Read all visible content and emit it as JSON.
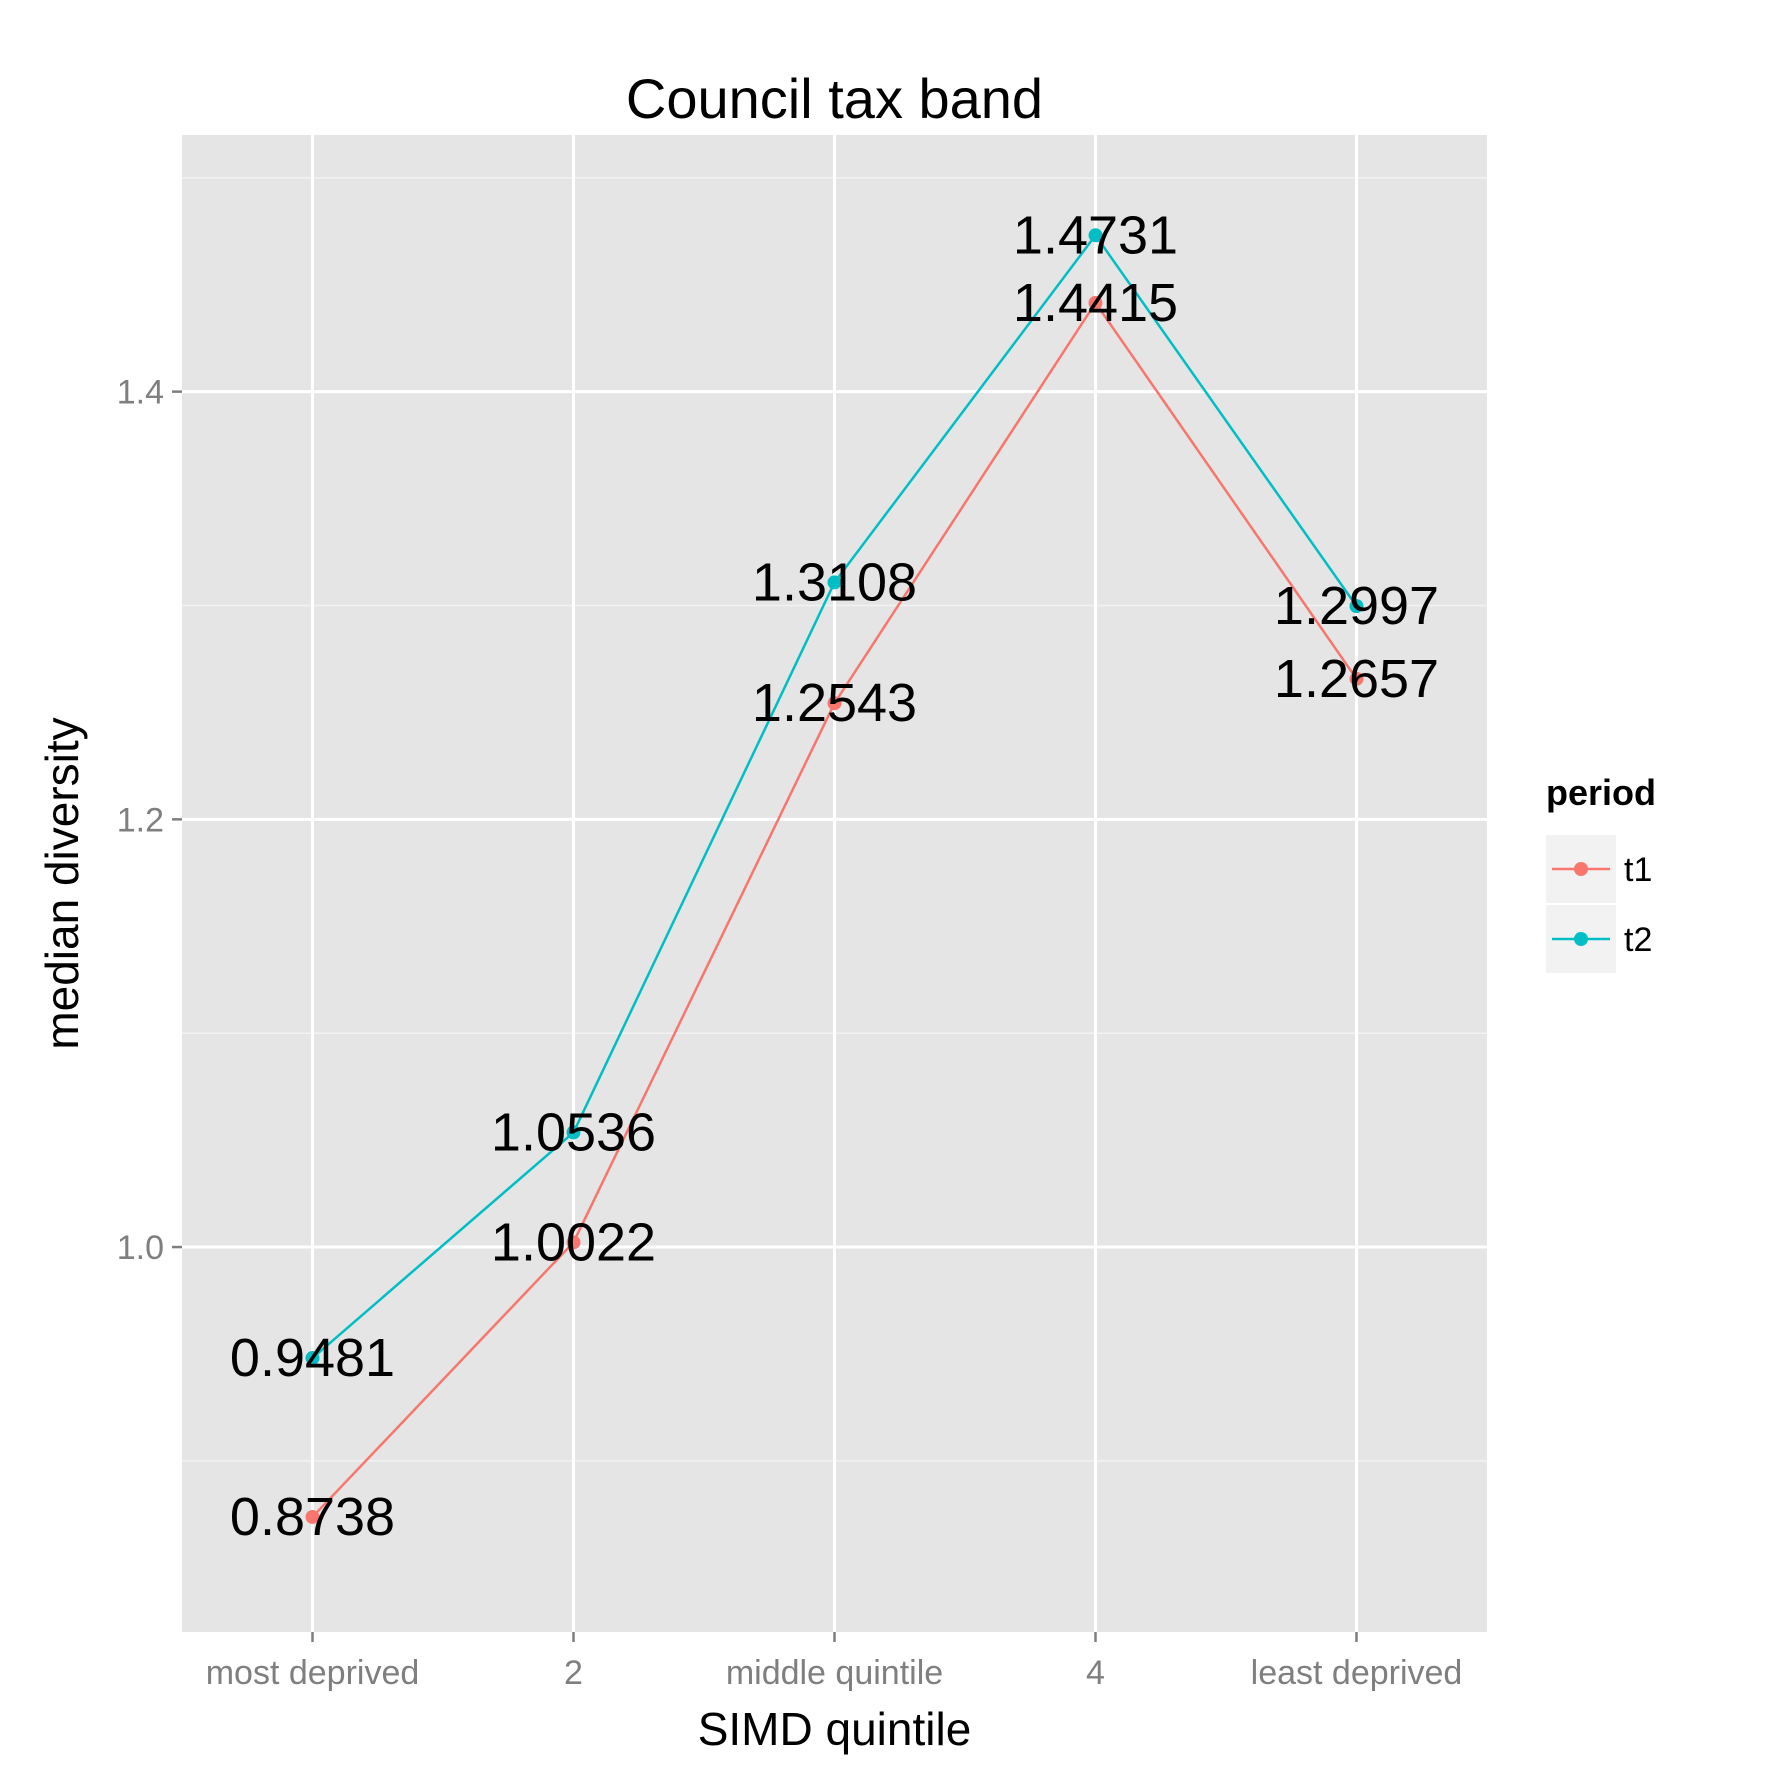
{
  "chart_data": {
    "type": "line",
    "title": "Council tax band",
    "xlabel": "SIMD quintile",
    "ylabel": "median diversity",
    "categories": [
      "most deprived",
      "2",
      "middle quintile",
      "4",
      "least deprived"
    ],
    "ylim": [
      0.82,
      1.52
    ],
    "yticks": [
      1.0,
      1.2,
      1.4
    ],
    "ytick_labels": [
      "1.0",
      "1.2",
      "1.4"
    ],
    "grid": true,
    "legend": {
      "title": "period",
      "position": "right"
    },
    "series": [
      {
        "name": "t1",
        "color": "#F8766D",
        "values": [
          0.8738,
          1.0022,
          1.2543,
          1.4415,
          1.2657
        ],
        "labels": [
          "0.8738",
          "1.0022",
          "1.2543",
          "1.4415",
          "1.2657"
        ]
      },
      {
        "name": "t2",
        "color": "#00BFC4",
        "values": [
          0.9481,
          1.0536,
          1.3108,
          1.4731,
          1.2997
        ],
        "labels": [
          "0.9481",
          "1.0536",
          "1.3108",
          "1.4731",
          "1.2997"
        ]
      }
    ],
    "colors": {
      "panel": "#E5E5E5",
      "grid": "#FFFFFF",
      "tick_text": "#7F7F7F"
    }
  }
}
